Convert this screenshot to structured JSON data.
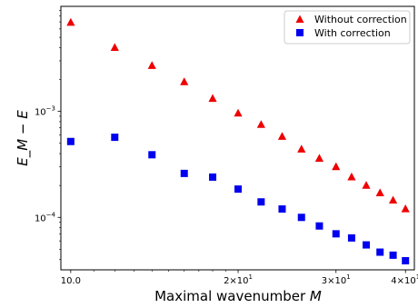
{
  "chart_data": {
    "type": "scatter",
    "xlabel": "Maximal wavenumber",
    "xlabel_symbol": "M",
    "ylabel": "E_M − E",
    "xscale": "log",
    "yscale": "log",
    "xlim": [
      9.6,
      41.5
    ],
    "ylim": [
      3.2e-05,
      0.0098
    ],
    "x_tick_labels": [
      {
        "value": 10,
        "text": "10.0"
      },
      {
        "value": 20,
        "base": "2×10",
        "exp": "1"
      },
      {
        "value": 30,
        "base": "3×10",
        "exp": "1"
      },
      {
        "value": 40,
        "base": "4×10",
        "exp": "1"
      }
    ],
    "y_tick_labels": [
      {
        "value": 0.001,
        "base": "10",
        "exp": "−3"
      },
      {
        "value": 0.0001,
        "base": "10",
        "exp": "−4"
      }
    ],
    "legend_position": "top-right",
    "series": [
      {
        "name": "Without correction",
        "marker": "triangle",
        "color": "#ee0000",
        "x": [
          10,
          12,
          14,
          16,
          18,
          20,
          22,
          24,
          26,
          28,
          30,
          32,
          34,
          36,
          38,
          40
        ],
        "y": [
          0.0069,
          0.004,
          0.0027,
          0.0019,
          0.00132,
          0.00096,
          0.00075,
          0.00058,
          0.00044,
          0.00036,
          0.0003,
          0.00024,
          0.0002,
          0.00017,
          0.000145,
          0.00012
        ]
      },
      {
        "name": "With correction",
        "marker": "square",
        "color": "#0000ee",
        "x": [
          10,
          12,
          14,
          16,
          18,
          20,
          22,
          24,
          26,
          28,
          30,
          32,
          34,
          36,
          38,
          40
        ],
        "y": [
          0.00052,
          0.00057,
          0.00039,
          0.00026,
          0.00024,
          0.000185,
          0.00014,
          0.00012,
          0.0001,
          8.3e-05,
          7e-05,
          6.4e-05,
          5.5e-05,
          4.7e-05,
          4.4e-05,
          3.9e-05
        ]
      }
    ]
  }
}
